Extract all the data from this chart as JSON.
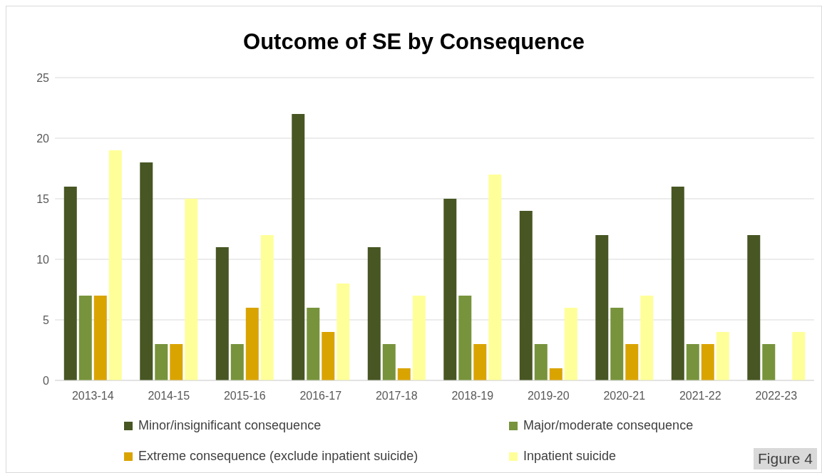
{
  "chart_data": {
    "type": "bar",
    "title": "Outcome of SE by Consequence",
    "categories": [
      "2013-14",
      "2014-15",
      "2015-16",
      "2016-17",
      "2017-18",
      "2018-19",
      "2019-20",
      "2020-21",
      "2021-22",
      "2022-23"
    ],
    "series": [
      {
        "name": "Minor/insignificant consequence",
        "color": "#475623",
        "values": [
          16,
          18,
          11,
          22,
          11,
          15,
          14,
          12,
          16,
          12
        ]
      },
      {
        "name": "Major/moderate consequence",
        "color": "#77933c",
        "values": [
          7,
          3,
          3,
          6,
          3,
          7,
          3,
          6,
          3,
          3
        ]
      },
      {
        "name": "Extreme consequence (exclude inpatient suicide)",
        "color": "#d9a400",
        "values": [
          7,
          3,
          6,
          4,
          1,
          3,
          1,
          3,
          3,
          0
        ]
      },
      {
        "name": "Inpatient suicide",
        "color": "#ffff99",
        "values": [
          19,
          15,
          12,
          8,
          7,
          17,
          6,
          7,
          4,
          4
        ]
      }
    ],
    "ylim": [
      0,
      25
    ],
    "yticks": [
      0,
      5,
      10,
      15,
      20,
      25
    ],
    "grid": "y",
    "legend": "bottom",
    "annotations": [
      "Figure 4"
    ]
  }
}
